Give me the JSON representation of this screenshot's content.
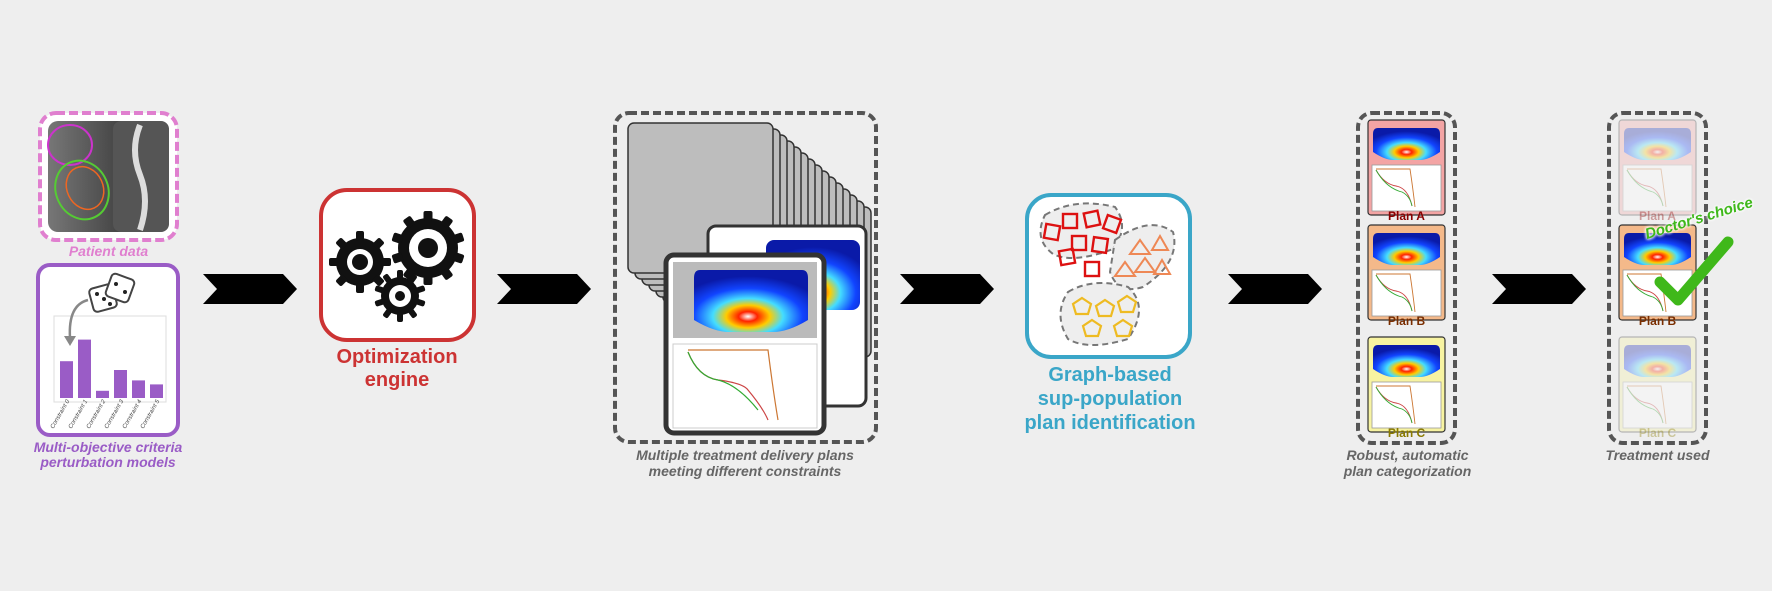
{
  "patient": {
    "caption": "Patient data"
  },
  "criteria": {
    "caption_line1": "Multi-objective criteria",
    "caption_line2": "perturbation models",
    "bar_labels": [
      "Constraint 0",
      "Constraint 1",
      "Constraint 2",
      "Constraint 3",
      "Constraint 4",
      "Constraint 5"
    ],
    "bar_values": [
      0.46,
      0.73,
      0.09,
      0.35,
      0.22,
      0.17
    ]
  },
  "optimization": {
    "title_line1": "Optimization",
    "title_line2": "engine"
  },
  "plans": {
    "caption_line1": "Multiple treatment delivery plans",
    "caption_line2": "meeting different constraints"
  },
  "graph": {
    "title_line1": "Graph-based",
    "title_line2": "sup-population",
    "title_line3": "plan identification"
  },
  "categorization": {
    "caption_line1": "Robust, automatic",
    "caption_line2": "plan categorization",
    "plans": [
      {
        "label": "Plan A",
        "bg": "#f3a4a4",
        "text_color": "#8b0000"
      },
      {
        "label": "Plan B",
        "bg": "#f4b98a",
        "text_color": "#7a2e00"
      },
      {
        "label": "Plan C",
        "bg": "#f7f3a1",
        "text_color": "#8a7a00"
      }
    ]
  },
  "treatment": {
    "caption": "Treatment used",
    "choice": "Doctor's choice",
    "plans": [
      "Plan A",
      "Plan B",
      "Plan C"
    ]
  },
  "colors": {
    "patient_border": "#e07fcf",
    "criteria_border": "#9a5cc6",
    "bar_fill": "#9a5cc6",
    "engine_red": "#cc3333",
    "graph_blue": "#3aa6c8",
    "choice_green": "#3fb81a",
    "caption_gray": "#666666"
  }
}
